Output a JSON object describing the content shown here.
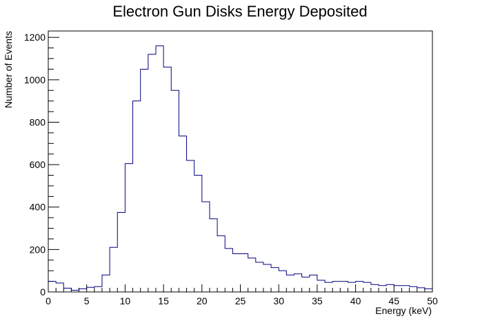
{
  "chart_data": {
    "type": "histogram",
    "title": "Electron Gun Disks Energy Deposited",
    "xlabel": "Energy (keV)",
    "ylabel": "Number of Events",
    "xlim": [
      0,
      50
    ],
    "ylim": [
      0,
      1230
    ],
    "x_ticks": [
      0,
      5,
      10,
      15,
      20,
      25,
      30,
      35,
      40,
      45,
      50
    ],
    "y_ticks": [
      0,
      200,
      400,
      600,
      800,
      1000,
      1200
    ],
    "bin_width": 1,
    "bin_edges_start": 0,
    "values": [
      50,
      42,
      18,
      8,
      15,
      22,
      25,
      80,
      210,
      375,
      605,
      900,
      1050,
      1120,
      1160,
      1060,
      950,
      735,
      620,
      550,
      425,
      345,
      265,
      205,
      180,
      180,
      160,
      140,
      130,
      115,
      100,
      80,
      85,
      70,
      80,
      55,
      45,
      50,
      50,
      45,
      50,
      45,
      35,
      30,
      35,
      30,
      30,
      25,
      20,
      15
    ],
    "line_color": "#000080",
    "grid": false,
    "legend": "none"
  }
}
